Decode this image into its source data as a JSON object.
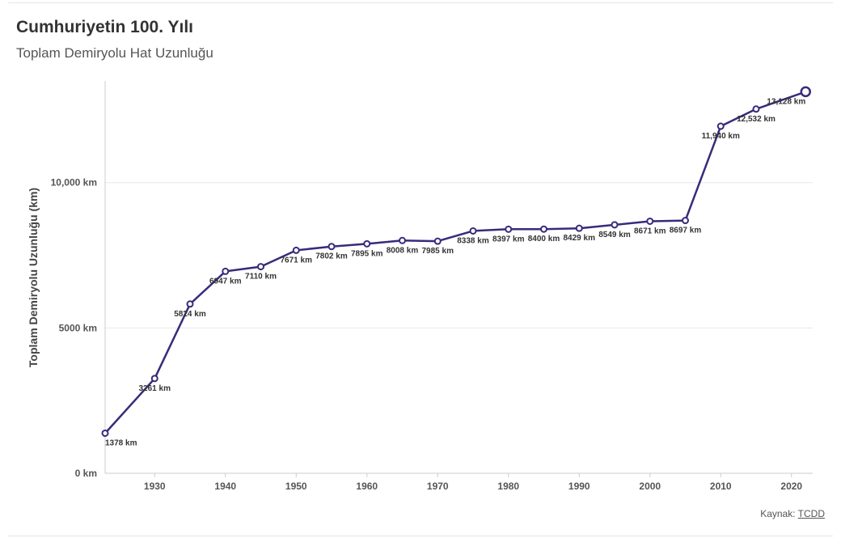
{
  "header": {
    "title": "Cumhuriyetin 100. Yılı",
    "subtitle": "Toplam Demiryolu Hat Uzunluğu"
  },
  "source": {
    "prefix": "Kaynak: ",
    "link_text": "TCDD"
  },
  "colors": {
    "series": "#3a2a7a",
    "grid": "#e8e8e8",
    "axis": "#cccccc"
  },
  "chart_data": {
    "type": "line",
    "title": "Cumhuriyetin 100. Yılı",
    "subtitle": "Toplam Demiryolu Hat Uzunluğu",
    "xlabel": "",
    "ylabel": "Toplam Demiryolu Uzunluğu (km)",
    "xlim": [
      1923,
      2023
    ],
    "ylim": [
      0,
      13500
    ],
    "x_ticks": [
      1930,
      1940,
      1950,
      1960,
      1970,
      1980,
      1990,
      2000,
      2010,
      2020
    ],
    "y_ticks": [
      {
        "value": 0,
        "label": "0 km"
      },
      {
        "value": 5000,
        "label": "5000 km"
      },
      {
        "value": 10000,
        "label": "10,000 km"
      }
    ],
    "grid": true,
    "legend": "none",
    "series": [
      {
        "x": [
          1923,
          1930,
          1935,
          1940,
          1945,
          1950,
          1955,
          1960,
          1965,
          1970,
          1975,
          1980,
          1985,
          1990,
          1995,
          2000,
          2005,
          2010,
          2015,
          2022
        ],
        "values": [
          1378,
          3261,
          5824,
          6947,
          7110,
          7671,
          7802,
          7895,
          8008,
          7985,
          8338,
          8397,
          8400,
          8429,
          8549,
          8671,
          8697,
          11940,
          12532,
          13128
        ],
        "labels": [
          "1378 km",
          "3261 km",
          "5824 km",
          "6947 km",
          "7110 km",
          "7671 km",
          "7802 km",
          "7895 km",
          "8008 km",
          "7985 km",
          "8338 km",
          "8397 km",
          "8400 km",
          "8429 km",
          "8549 km",
          "8671 km",
          "8697 km",
          "11,940 km",
          "12,532 km",
          "13,128 km"
        ]
      }
    ]
  }
}
